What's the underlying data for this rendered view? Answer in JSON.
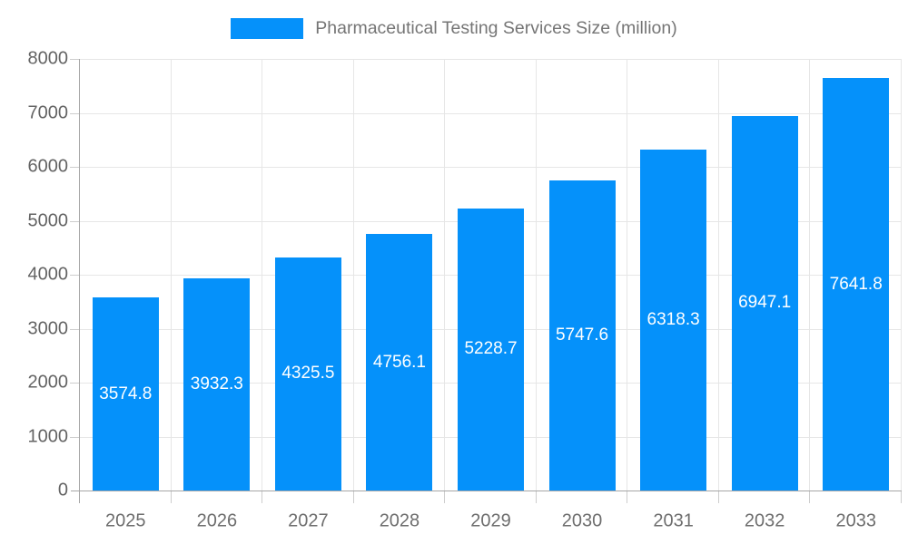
{
  "legend": {
    "label": "Pharmaceutical Testing Services Size (million)"
  },
  "chart_data": {
    "type": "bar",
    "title": "Pharmaceutical Testing Services Size (million)",
    "xlabel": "",
    "ylabel": "",
    "categories": [
      "2025",
      "2026",
      "2027",
      "2028",
      "2029",
      "2030",
      "2031",
      "2032",
      "2033"
    ],
    "values": [
      3574.8,
      3932.3,
      4325.5,
      4756.1,
      5228.7,
      5747.6,
      6318.3,
      6947.1,
      7641.8
    ],
    "series_name": "Pharmaceutical Testing Services Size (million)",
    "ylim": [
      0,
      8000
    ],
    "ytick_step": 1000,
    "ytick_labels": [
      "0",
      "1000",
      "2000",
      "3000",
      "4000",
      "5000",
      "6000",
      "7000",
      "8000"
    ],
    "grid": true,
    "legend_position": "top",
    "value_labels": "inside-center"
  },
  "colors": {
    "bar": "#0591FA",
    "value_label": "#ffffff",
    "gridline": "#e6e6e6",
    "tick": "#cdcdcd",
    "axis_line": "#a6a6a6",
    "y_label_text": "#646464",
    "x_label_text": "#6e6e6e",
    "legend_text": "#757575"
  }
}
